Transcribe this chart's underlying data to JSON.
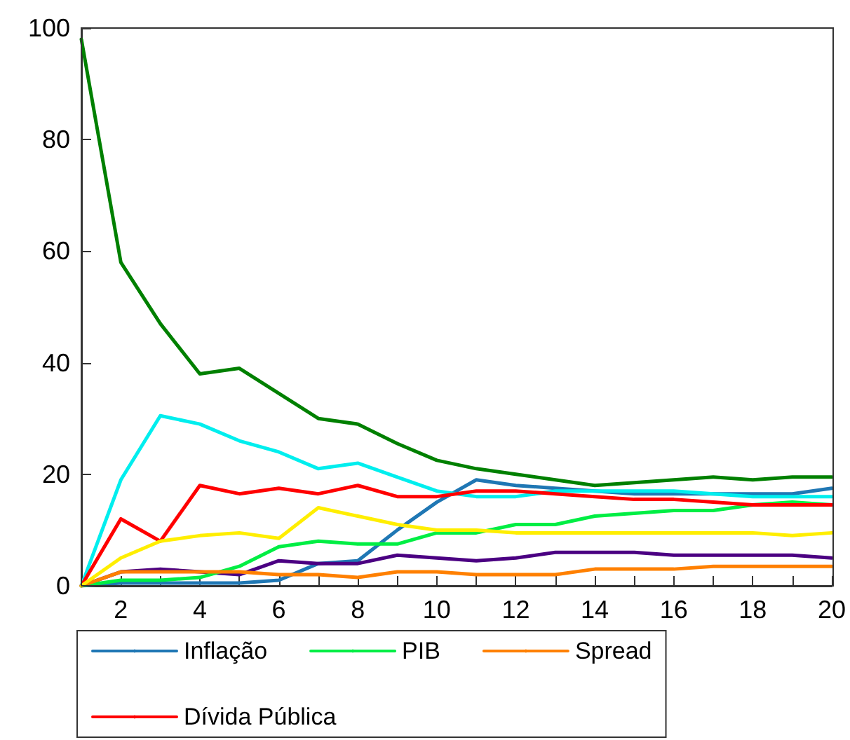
{
  "chart_data": {
    "type": "line",
    "x": [
      1,
      2,
      3,
      4,
      5,
      6,
      7,
      8,
      9,
      10,
      11,
      12,
      13,
      14,
      15,
      16,
      17,
      18,
      19,
      20
    ],
    "series": [
      {
        "name": "Inflação",
        "color": "#1f77b4",
        "values": [
          0,
          0.5,
          0.5,
          0.5,
          0.5,
          1,
          4,
          4.5,
          10,
          15,
          19,
          18,
          17.5,
          17,
          16.5,
          16.5,
          16.5,
          16.5,
          16.5,
          17.5
        ]
      },
      {
        "color": "#4b0082",
        "values": [
          0,
          2.5,
          3,
          2.5,
          2,
          4.5,
          4,
          4,
          5.5,
          5,
          4.5,
          5,
          6,
          6,
          6,
          5.5,
          5.5,
          5.5,
          5.5,
          5
        ]
      },
      {
        "color": "#008000",
        "values": [
          98,
          58,
          47,
          38,
          39,
          34.5,
          30,
          29,
          25.5,
          22.5,
          21,
          20,
          19,
          18,
          18.5,
          19,
          19.5,
          19,
          19.5,
          19.5
        ]
      },
      {
        "name": "PIB",
        "color": "#00ee44",
        "values": [
          0,
          1,
          1,
          1.5,
          3.5,
          7,
          8,
          7.5,
          7.5,
          9.5,
          9.5,
          11,
          11,
          12.5,
          13,
          13.5,
          13.5,
          14.5,
          15,
          14.5
        ]
      },
      {
        "color": "#00eeee",
        "values": [
          0,
          19,
          30.5,
          29,
          26,
          24,
          21,
          22,
          19.5,
          17,
          16,
          16,
          17,
          17,
          17,
          17,
          16.5,
          16,
          16,
          16
        ]
      },
      {
        "name": "Spread",
        "color": "#ff8000",
        "values": [
          0,
          2.5,
          2.5,
          2.5,
          2.5,
          2,
          2,
          1.5,
          2.5,
          2.5,
          2,
          2,
          2,
          3,
          3,
          3,
          3.5,
          3.5,
          3.5,
          3.5
        ]
      },
      {
        "name": "Dívida Pública",
        "color": "#ff0000",
        "values": [
          0,
          12,
          8,
          18,
          16.5,
          17.5,
          16.5,
          18,
          16,
          16,
          17,
          17,
          16.5,
          16,
          15.5,
          15.5,
          15,
          14.5,
          14.5,
          14.5
        ]
      },
      {
        "color": "#ffee00",
        "values": [
          0,
          5,
          8,
          9,
          9.5,
          8.5,
          14,
          12.5,
          11,
          10,
          10,
          9.5,
          9.5,
          9.5,
          9.5,
          9.5,
          9.5,
          9.5,
          9,
          9.5
        ]
      }
    ],
    "xlim": [
      1,
      20
    ],
    "xticks": [
      {
        "value": 1,
        "label": null
      },
      2,
      {
        "value": 3,
        "label": null
      },
      4,
      {
        "value": 5,
        "label": null
      },
      6,
      {
        "value": 7,
        "label": null
      },
      8,
      {
        "value": 9,
        "label": null
      },
      10,
      {
        "value": 11,
        "label": null
      },
      12,
      {
        "value": 13,
        "label": null
      },
      14,
      {
        "value": 15,
        "label": null
      },
      16,
      {
        "value": 17,
        "label": null
      },
      18,
      {
        "value": 19,
        "label": null
      },
      20
    ],
    "ylim": [
      0,
      100
    ],
    "yticks": [
      0,
      20,
      40,
      60,
      80,
      100
    ],
    "grid": false,
    "legend": "bottom",
    "marker": "none",
    "line_style": "solid"
  }
}
